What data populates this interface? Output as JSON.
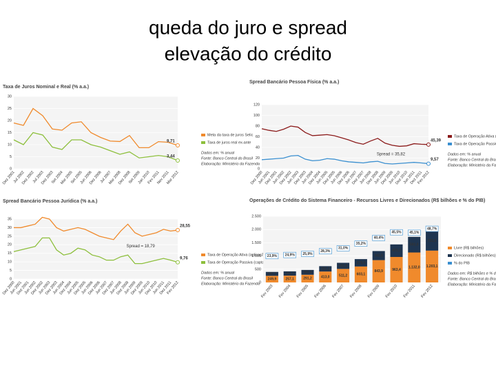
{
  "title": [
    "queda do juro e spread",
    "elevação do crédito"
  ],
  "chart_data": [
    {
      "type": "line",
      "title": "Taxa de Juros Nominal e Real (% a.a.)",
      "categories": [
        "Dez 2001",
        "Jul 2002",
        "Dez 2002",
        "Jul 2003",
        "Dez 2003",
        "Set 2004",
        "Mar 2005",
        "Set 2005",
        "Jun 2006",
        "Dez 2006",
        "Jul 2007",
        "Mar 2008",
        "Dez 2008",
        "Set 2009",
        "Jan 2010",
        "Fev 2011",
        "Nov 2011",
        "Mar 2012"
      ],
      "series": [
        {
          "name": "Meta da taxa de juros Selic",
          "color": "#f08a2c",
          "values": [
            19,
            18,
            25,
            22,
            16.5,
            16,
            19,
            19.5,
            15,
            13,
            11.5,
            11.3,
            13.8,
            8.75,
            8.75,
            11.25,
            11,
            9.71
          ],
          "value_labels": [
            null,
            null,
            null,
            null,
            null,
            null,
            null,
            null,
            null,
            null,
            null,
            null,
            null,
            null,
            null,
            null,
            null,
            "9,71"
          ]
        },
        {
          "name": "Taxa de juros real ex-ante",
          "color": "#8dbf3c",
          "values": [
            12,
            10,
            15,
            14,
            9,
            8,
            12,
            12,
            10,
            9,
            7.5,
            6,
            7,
            4.5,
            5,
            5.5,
            5,
            3.44
          ],
          "value_labels": [
            null,
            null,
            null,
            null,
            null,
            null,
            null,
            null,
            null,
            null,
            null,
            null,
            null,
            null,
            null,
            null,
            null,
            "3,44"
          ]
        }
      ],
      "ylim": [
        0,
        30
      ],
      "yticks": [
        0,
        5,
        10,
        15,
        20,
        25,
        30
      ],
      "grid": true,
      "notes": [
        "Dados em: % anual",
        "Fonte: Banco Central do Brasil",
        "Elaboração: Ministério da Fazenda"
      ]
    },
    {
      "type": "line",
      "title": "Spread Bancário Pessoa Física (% a.a.)",
      "categories": [
        "Dez 2000",
        "Jun 2001",
        "Dez 2001",
        "Jun 2002",
        "Dez 2002",
        "Jun 2003",
        "Dez 2003",
        "Jun 2004",
        "Dez 2004",
        "Jun 2005",
        "Dez 2005",
        "Jun 2006",
        "Dez 2006",
        "Jun 2007",
        "Dez 2007",
        "Jun 2008",
        "Dez 2008",
        "Jun 2009",
        "Dez 2009",
        "Jun 2010",
        "Dez 2010",
        "Jun 2011",
        "Dez 2011",
        "Fev 2012"
      ],
      "series": [
        {
          "name": "Taxa de Operação Ativa (aplicação)",
          "color": "#8b1a1a",
          "values": [
            75,
            72,
            70,
            74,
            80,
            78,
            68,
            62,
            63,
            64,
            62,
            58,
            54,
            49,
            46,
            52,
            57,
            48,
            44,
            42,
            43,
            47,
            46,
            45.39
          ],
          "value_labels": [
            null,
            null,
            null,
            null,
            null,
            null,
            null,
            null,
            null,
            null,
            null,
            null,
            null,
            null,
            null,
            null,
            null,
            null,
            null,
            null,
            null,
            null,
            null,
            "45,39"
          ]
        },
        {
          "name": "Taxa de Operação Passiva (captação)",
          "color": "#3a8fd0",
          "values": [
            17,
            18,
            19,
            20,
            24,
            25,
            18,
            15,
            16,
            19,
            18,
            15,
            13,
            12,
            11,
            13,
            14,
            10,
            9,
            10,
            11,
            12,
            11,
            9.57
          ],
          "value_labels": [
            null,
            null,
            null,
            null,
            null,
            null,
            null,
            null,
            null,
            null,
            null,
            null,
            null,
            null,
            null,
            null,
            null,
            null,
            null,
            null,
            null,
            null,
            null,
            "9,57"
          ]
        }
      ],
      "annotations": [
        "Spread = 35,82"
      ],
      "ylim": [
        0,
        120
      ],
      "yticks": [
        0,
        20,
        40,
        60,
        80,
        100,
        120
      ],
      "grid": true,
      "notes": [
        "Dados em: % anual",
        "Fonte: Banco Central do Brasil",
        "Elaboração: Ministério da Fazenda"
      ]
    },
    {
      "type": "line",
      "title": "Spread Bancário Pessoa Jurídica (% a.a.)",
      "categories": [
        "Dez 2000",
        "Jun 2001",
        "Dez 2001",
        "Jun 2002",
        "Dez 2002",
        "Jun 2003",
        "Dez 2003",
        "Jun 2004",
        "Dez 2004",
        "Jun 2005",
        "Dez 2005",
        "Jun 2006",
        "Dez 2006",
        "Jun 2007",
        "Dez 2007",
        "Jun 2008",
        "Dez 2008",
        "Jun 2009",
        "Dez 2009",
        "Jun 2010",
        "Dez 2010",
        "Jun 2011",
        "Dez 2011",
        "Fev 2012"
      ],
      "series": [
        {
          "name": "Taxa de Operação Ativa (aplicação)",
          "color": "#f08a2c",
          "values": [
            30,
            30,
            31,
            32,
            36,
            35,
            30,
            28,
            29,
            30,
            29,
            27,
            25,
            24,
            23,
            28,
            32,
            27,
            25,
            26,
            27,
            29,
            28,
            28.55
          ],
          "value_labels": [
            null,
            null,
            null,
            null,
            null,
            null,
            null,
            null,
            null,
            null,
            null,
            null,
            null,
            null,
            null,
            null,
            null,
            null,
            null,
            null,
            null,
            null,
            null,
            "28,55"
          ]
        },
        {
          "name": "Taxa de Operação Passiva (captação)",
          "color": "#8dbf3c",
          "values": [
            16,
            17,
            18,
            19,
            24,
            24,
            17,
            14,
            15,
            18,
            17,
            14,
            13,
            11,
            11,
            13,
            14,
            9,
            9,
            10,
            11,
            12,
            11,
            9.76
          ],
          "value_labels": [
            null,
            null,
            null,
            null,
            null,
            null,
            null,
            null,
            null,
            null,
            null,
            null,
            null,
            null,
            null,
            null,
            null,
            null,
            null,
            null,
            null,
            null,
            null,
            "9,76"
          ]
        }
      ],
      "annotations": [
        "Spread = 18,79"
      ],
      "ylim": [
        0,
        35
      ],
      "yticks": [
        0,
        5,
        10,
        15,
        20,
        25,
        30,
        35
      ],
      "grid": true,
      "notes": [
        "Dados em: % anual",
        "Fonte: Banco Central do Brasil",
        "Elaboração: Ministério da Fazenda"
      ]
    },
    {
      "type": "stacked-bar",
      "title": "Operações de Crédito do Sistema Financeiro - Recursos Livres e Direcionados (R$ bilhões e % do PIB)",
      "categories": [
        "Fev 2003",
        "Fev 2004",
        "Fev 2005",
        "Fev 2006",
        "Fev 2007",
        "Fev 2008",
        "Fev 2009",
        "Fev 2010",
        "Fev 2011",
        "Fev 2012"
      ],
      "series": [
        {
          "name": "Livre (R$ bilhões)",
          "color": "#f08a2c",
          "values": [
            249.9,
            257.1,
            291.2,
            413.0,
            511.2,
            603.1,
            843.9,
            963.4,
            1132.0,
            1203.1
          ],
          "value_labels": [
            "249,9",
            "257,1",
            "291,2",
            "413,0",
            "511,2",
            "603,1",
            "843,9",
            "963,4",
            "1.132,0",
            "1.203,1"
          ]
        },
        {
          "name": "Direcionado (R$ bilhões)",
          "color": "#1f3550",
          "values": [
            147.7,
            161.7,
            181.4,
            202.3,
            231.0,
            279.4,
            342.5,
            473.7,
            592.0,
            731.5
          ],
          "value_labels": [
            "147,7",
            "161,7",
            "181,4",
            "202,3",
            "231,0",
            "279,4",
            "342,5",
            "473,7",
            "592,0",
            "731,5"
          ]
        },
        {
          "name": "% do PIB",
          "color": "#3a8fd0",
          "axis": "y2",
          "values": [
            23.9,
            24.9,
            25.9,
            28.3,
            31.0,
            35.2,
            40.4,
            45.5,
            45.1,
            48.7
          ],
          "value_labels": [
            "23,9%",
            "24,9%",
            "25,9%",
            "28,3%",
            "31,0%",
            "35,2%",
            "40,4%",
            "45,5%",
            "45,1%",
            "48,7%"
          ]
        }
      ],
      "ylim": [
        0,
        2500
      ],
      "yticks": [
        0,
        500,
        {
          "value": 1000,
          "label": "1.000"
        },
        {
          "value": 1500,
          "label": "1.500"
        },
        {
          "value": 2000,
          "label": "2.000"
        },
        {
          "value": 2500,
          "label": "2.500"
        }
      ],
      "y2lim": [
        0,
        60
      ],
      "grid": true,
      "notes": [
        "Dados em: R$ bilhões e % do PIB",
        "Fonte: Banco Central do Brasil",
        "Elaboração: Ministério da Fazenda"
      ]
    }
  ]
}
